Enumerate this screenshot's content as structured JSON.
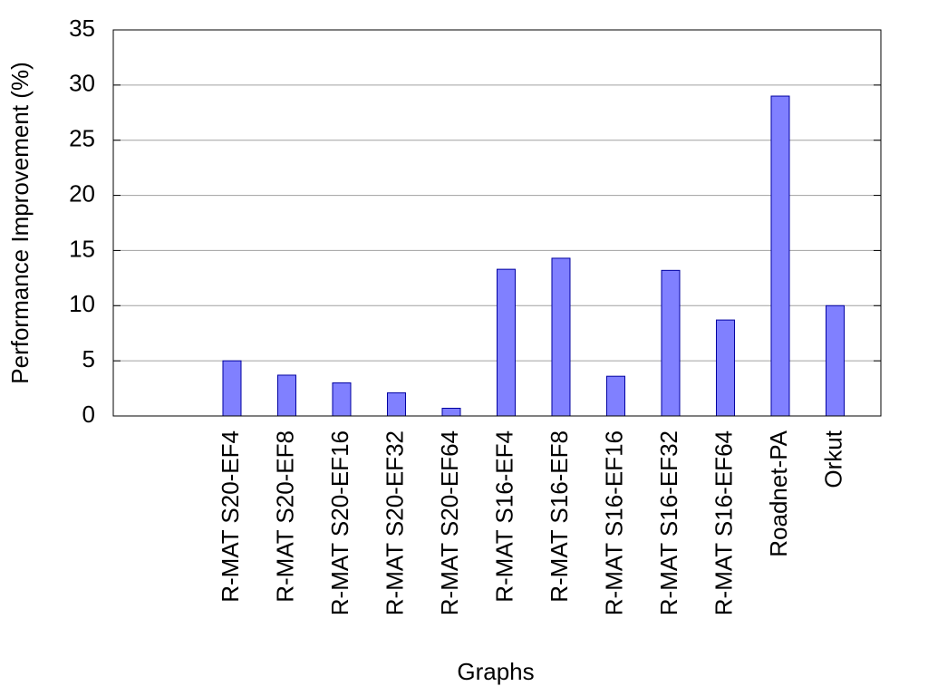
{
  "chart_data": {
    "type": "bar",
    "x_label": "Graphs",
    "y_label": "Performance Improvement (%)",
    "categories": [
      "R-MAT S20-EF4",
      "R-MAT S20-EF8",
      "R-MAT S20-EF16",
      "R-MAT S20-EF32",
      "R-MAT S20-EF64",
      "R-MAT S16-EF4",
      "R-MAT S16-EF8",
      "R-MAT S16-EF16",
      "R-MAT S16-EF32",
      "R-MAT S16-EF64",
      "Roadnet-PA",
      "Orkut"
    ],
    "values": [
      5.0,
      3.7,
      3.0,
      2.1,
      0.7,
      13.3,
      14.3,
      3.6,
      13.2,
      8.7,
      29.0,
      10.0
    ],
    "color": "#8080ff",
    "ylim": [
      0,
      35
    ],
    "yticks": [
      0,
      5,
      10,
      15,
      20,
      25,
      30,
      35
    ],
    "grid": true
  }
}
